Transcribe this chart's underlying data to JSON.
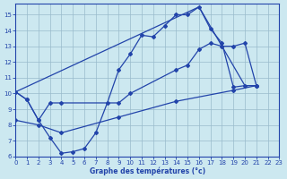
{
  "bg_color": "#cce8f0",
  "line_color": "#2244aa",
  "grid_color": "#99bbcc",
  "xlabel": "Graphe des températures (°c)",
  "xlim": [
    0,
    23
  ],
  "ylim": [
    6,
    15.7
  ],
  "xticks": [
    0,
    1,
    2,
    3,
    4,
    5,
    6,
    7,
    8,
    9,
    10,
    11,
    12,
    13,
    14,
    15,
    16,
    17,
    18,
    19,
    20,
    21,
    22,
    23
  ],
  "yticks": [
    6,
    7,
    8,
    9,
    10,
    11,
    12,
    13,
    14,
    15
  ],
  "curve1_x": [
    0,
    1,
    2,
    3,
    4,
    5,
    6,
    7,
    8,
    9,
    10,
    11,
    12,
    13,
    14,
    15,
    16,
    17,
    18,
    19,
    20,
    21
  ],
  "curve1_y": [
    10.1,
    9.6,
    8.3,
    7.2,
    6.2,
    6.3,
    6.5,
    7.5,
    9.4,
    11.5,
    12.5,
    13.7,
    13.6,
    14.3,
    15.0,
    15.0,
    15.5,
    14.1,
    13.2,
    10.4,
    10.5,
    10.5
  ],
  "curve2_x": [
    0,
    16,
    20,
    21
  ],
  "curve2_y": [
    10.1,
    15.5,
    10.5,
    10.5
  ],
  "curve3_x": [
    0,
    1,
    2,
    3,
    4,
    9,
    10,
    14,
    15,
    16,
    17,
    18,
    19,
    20,
    21
  ],
  "curve3_y": [
    10.1,
    9.6,
    8.3,
    9.4,
    9.4,
    9.4,
    10.0,
    11.5,
    11.8,
    12.8,
    13.2,
    13.0,
    13.0,
    13.2,
    10.5
  ],
  "curve4_x": [
    0,
    2,
    4,
    9,
    14,
    19,
    21
  ],
  "curve4_y": [
    8.3,
    8.0,
    7.5,
    8.5,
    9.5,
    10.2,
    10.5
  ]
}
